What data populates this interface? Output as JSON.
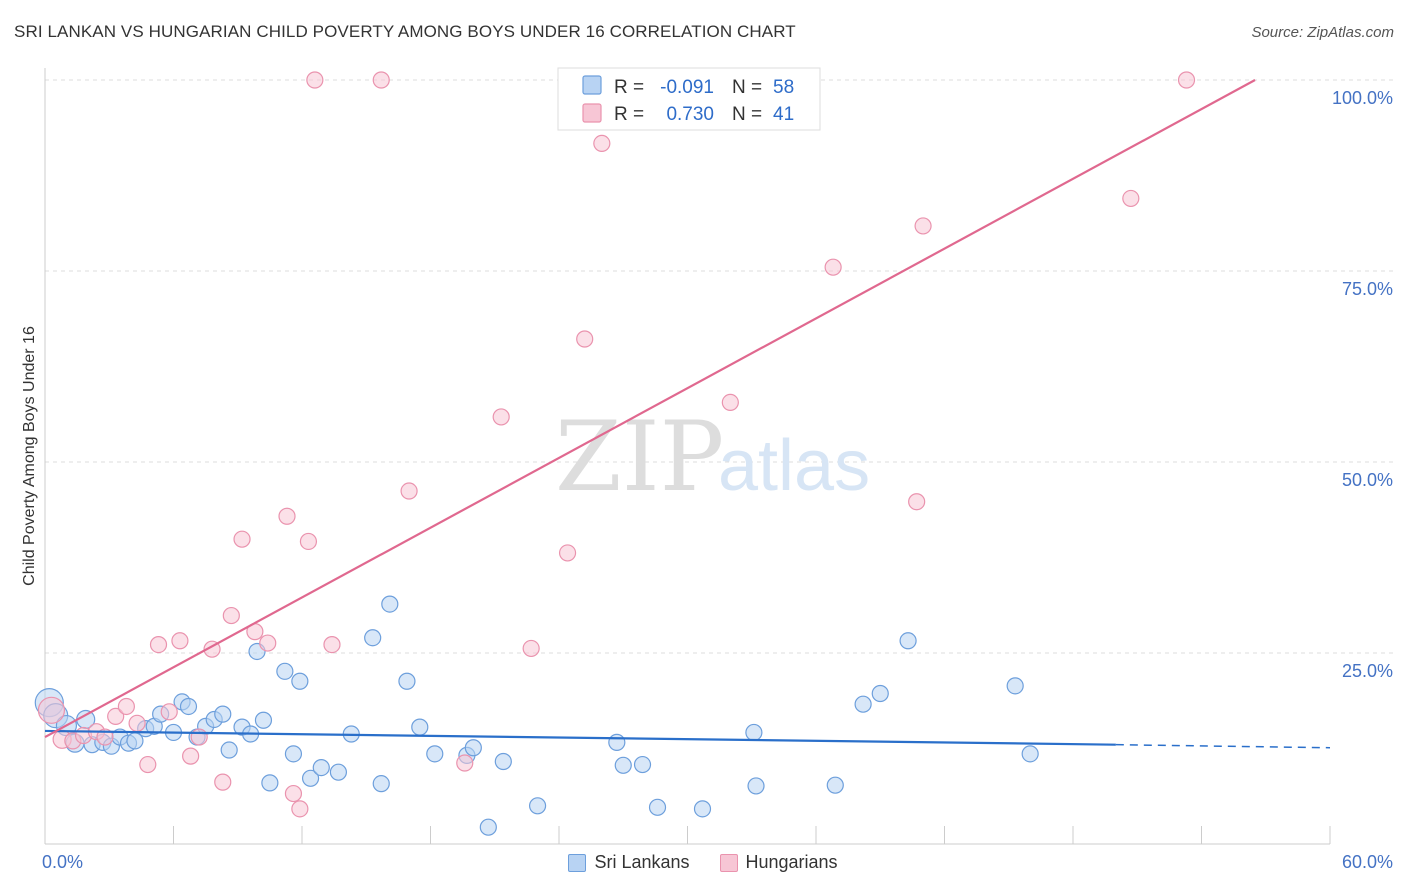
{
  "title": "SRI LANKAN VS HUNGARIAN CHILD POVERTY AMONG BOYS UNDER 16 CORRELATION CHART",
  "source": "Source: ZipAtlas.com",
  "watermark": {
    "zip": "ZIP",
    "atlas": "atlas"
  },
  "colors": {
    "blue_fill": "#b8d3f3",
    "blue_stroke": "#6d9fdc",
    "blue_line": "#2a6fca",
    "pink_fill": "#f7c6d5",
    "pink_stroke": "#ea93ae",
    "pink_line": "#e0688f",
    "grid": "#dddddd",
    "axis_text": "#4472c4"
  },
  "stats": {
    "r_label": "R =",
    "n_label": "N =",
    "rows": [
      {
        "series": "Sri Lankans",
        "r": "-0.091",
        "n": "58"
      },
      {
        "series": "Hungarians",
        "r": "0.730",
        "n": "41"
      }
    ]
  },
  "chart_data": {
    "type": "scatter",
    "title": "SRI LANKAN VS HUNGARIAN CHILD POVERTY AMONG BOYS UNDER 16 CORRELATION CHART",
    "xlabel": "",
    "ylabel": "Child Poverty Among Boys Under 16",
    "xlim": [
      0,
      60
    ],
    "ylim": [
      0,
      100
    ],
    "x_tick_labels": [
      "0.0%",
      "60.0%"
    ],
    "y_ticks": [
      25,
      50,
      75,
      100
    ],
    "y_tick_labels": [
      "25.0%",
      "50.0%",
      "75.0%",
      "100.0%"
    ],
    "grid": true,
    "legend_placement": "bottom",
    "series": [
      {
        "name": "Sri Lankans",
        "trend": {
          "x": [
            0,
            50
          ],
          "y": [
            14.8,
            13.0
          ],
          "dashed_to_x": 60,
          "dashed_y": 12.6
        },
        "points": [
          {
            "x": 0.2,
            "y": 18.5,
            "s": 14
          },
          {
            "x": 0.5,
            "y": 16.8,
            "s": 12
          },
          {
            "x": 1.0,
            "y": 15.5,
            "s": 10
          },
          {
            "x": 1.4,
            "y": 13.2,
            "s": 9
          },
          {
            "x": 1.9,
            "y": 16.3,
            "s": 9
          },
          {
            "x": 2.2,
            "y": 13.0,
            "s": 8
          },
          {
            "x": 2.7,
            "y": 13.3,
            "s": 8
          },
          {
            "x": 3.1,
            "y": 12.8,
            "s": 8
          },
          {
            "x": 3.5,
            "y": 14.0,
            "s": 8
          },
          {
            "x": 3.9,
            "y": 13.2,
            "s": 8
          },
          {
            "x": 4.2,
            "y": 13.5,
            "s": 8
          },
          {
            "x": 4.7,
            "y": 15.1,
            "s": 8
          },
          {
            "x": 5.1,
            "y": 15.4,
            "s": 8
          },
          {
            "x": 5.4,
            "y": 17.0,
            "s": 8
          },
          {
            "x": 6.0,
            "y": 14.6,
            "s": 8
          },
          {
            "x": 6.4,
            "y": 18.6,
            "s": 8
          },
          {
            "x": 6.7,
            "y": 18.0,
            "s": 8
          },
          {
            "x": 7.1,
            "y": 14.0,
            "s": 8
          },
          {
            "x": 7.5,
            "y": 15.4,
            "s": 8
          },
          {
            "x": 7.9,
            "y": 16.3,
            "s": 8
          },
          {
            "x": 8.3,
            "y": 17.0,
            "s": 8
          },
          {
            "x": 8.6,
            "y": 12.3,
            "s": 8
          },
          {
            "x": 9.2,
            "y": 15.3,
            "s": 8
          },
          {
            "x": 9.6,
            "y": 14.4,
            "s": 8
          },
          {
            "x": 9.9,
            "y": 25.2,
            "s": 8
          },
          {
            "x": 10.2,
            "y": 16.2,
            "s": 8
          },
          {
            "x": 10.5,
            "y": 8.0,
            "s": 8
          },
          {
            "x": 11.2,
            "y": 22.6,
            "s": 8
          },
          {
            "x": 11.6,
            "y": 11.8,
            "s": 8
          },
          {
            "x": 11.9,
            "y": 21.3,
            "s": 8
          },
          {
            "x": 12.4,
            "y": 8.6,
            "s": 8
          },
          {
            "x": 12.9,
            "y": 10.0,
            "s": 8
          },
          {
            "x": 13.7,
            "y": 9.4,
            "s": 8
          },
          {
            "x": 14.3,
            "y": 14.4,
            "s": 8
          },
          {
            "x": 15.3,
            "y": 27.0,
            "s": 8
          },
          {
            "x": 15.7,
            "y": 7.9,
            "s": 8
          },
          {
            "x": 16.1,
            "y": 31.4,
            "s": 8
          },
          {
            "x": 16.9,
            "y": 21.3,
            "s": 8
          },
          {
            "x": 17.5,
            "y": 15.3,
            "s": 8
          },
          {
            "x": 18.2,
            "y": 11.8,
            "s": 8
          },
          {
            "x": 19.7,
            "y": 11.6,
            "s": 8
          },
          {
            "x": 20.0,
            "y": 12.6,
            "s": 8
          },
          {
            "x": 20.7,
            "y": 2.2,
            "s": 8
          },
          {
            "x": 21.4,
            "y": 10.8,
            "s": 8
          },
          {
            "x": 23.0,
            "y": 5.0,
            "s": 8
          },
          {
            "x": 26.7,
            "y": 13.3,
            "s": 8
          },
          {
            "x": 27.0,
            "y": 10.3,
            "s": 8
          },
          {
            "x": 27.9,
            "y": 10.4,
            "s": 8
          },
          {
            "x": 28.6,
            "y": 4.8,
            "s": 8
          },
          {
            "x": 30.7,
            "y": 4.6,
            "s": 8
          },
          {
            "x": 33.1,
            "y": 14.6,
            "s": 8
          },
          {
            "x": 33.2,
            "y": 7.6,
            "s": 8
          },
          {
            "x": 36.9,
            "y": 7.7,
            "s": 8
          },
          {
            "x": 38.2,
            "y": 18.3,
            "s": 8
          },
          {
            "x": 39.0,
            "y": 19.7,
            "s": 8
          },
          {
            "x": 40.3,
            "y": 26.6,
            "s": 8
          },
          {
            "x": 45.3,
            "y": 20.7,
            "s": 8
          },
          {
            "x": 46.0,
            "y": 11.8,
            "s": 8
          }
        ]
      },
      {
        "name": "Hungarians",
        "trend": {
          "x": [
            0,
            56.5
          ],
          "y": [
            14.0,
            100
          ]
        },
        "points": [
          {
            "x": 0.3,
            "y": 17.5,
            "s": 13
          },
          {
            "x": 0.8,
            "y": 13.7,
            "s": 9
          },
          {
            "x": 1.3,
            "y": 13.5,
            "s": 8
          },
          {
            "x": 1.8,
            "y": 14.2,
            "s": 8
          },
          {
            "x": 2.4,
            "y": 14.7,
            "s": 8
          },
          {
            "x": 2.8,
            "y": 14.0,
            "s": 8
          },
          {
            "x": 3.3,
            "y": 16.7,
            "s": 8
          },
          {
            "x": 3.8,
            "y": 18.0,
            "s": 8
          },
          {
            "x": 4.3,
            "y": 15.8,
            "s": 8
          },
          {
            "x": 4.8,
            "y": 10.4,
            "s": 8
          },
          {
            "x": 5.3,
            "y": 26.1,
            "s": 8
          },
          {
            "x": 5.8,
            "y": 17.3,
            "s": 8
          },
          {
            "x": 6.3,
            "y": 26.6,
            "s": 8
          },
          {
            "x": 6.8,
            "y": 11.5,
            "s": 8
          },
          {
            "x": 7.2,
            "y": 14.0,
            "s": 8
          },
          {
            "x": 7.8,
            "y": 25.5,
            "s": 8
          },
          {
            "x": 8.3,
            "y": 8.1,
            "s": 8
          },
          {
            "x": 8.7,
            "y": 29.9,
            "s": 8
          },
          {
            "x": 9.2,
            "y": 39.9,
            "s": 8
          },
          {
            "x": 9.8,
            "y": 27.8,
            "s": 8
          },
          {
            "x": 10.4,
            "y": 26.3,
            "s": 8
          },
          {
            "x": 11.3,
            "y": 42.9,
            "s": 8
          },
          {
            "x": 11.6,
            "y": 6.6,
            "s": 8
          },
          {
            "x": 11.9,
            "y": 4.6,
            "s": 8
          },
          {
            "x": 12.3,
            "y": 39.6,
            "s": 8
          },
          {
            "x": 12.6,
            "y": 100.0,
            "s": 8
          },
          {
            "x": 13.4,
            "y": 26.1,
            "s": 8
          },
          {
            "x": 15.7,
            "y": 100.0,
            "s": 8
          },
          {
            "x": 17.0,
            "y": 46.2,
            "s": 8
          },
          {
            "x": 19.6,
            "y": 10.6,
            "s": 8
          },
          {
            "x": 21.3,
            "y": 55.9,
            "s": 8
          },
          {
            "x": 22.7,
            "y": 25.6,
            "s": 8
          },
          {
            "x": 24.4,
            "y": 38.1,
            "s": 8
          },
          {
            "x": 25.2,
            "y": 66.1,
            "s": 8
          },
          {
            "x": 26.0,
            "y": 91.7,
            "s": 8
          },
          {
            "x": 32.0,
            "y": 57.8,
            "s": 8
          },
          {
            "x": 36.8,
            "y": 75.5,
            "s": 8
          },
          {
            "x": 40.7,
            "y": 44.8,
            "s": 8
          },
          {
            "x": 41.0,
            "y": 80.9,
            "s": 8
          },
          {
            "x": 50.7,
            "y": 84.5,
            "s": 8
          },
          {
            "x": 53.3,
            "y": 100.0,
            "s": 8
          }
        ]
      }
    ]
  }
}
